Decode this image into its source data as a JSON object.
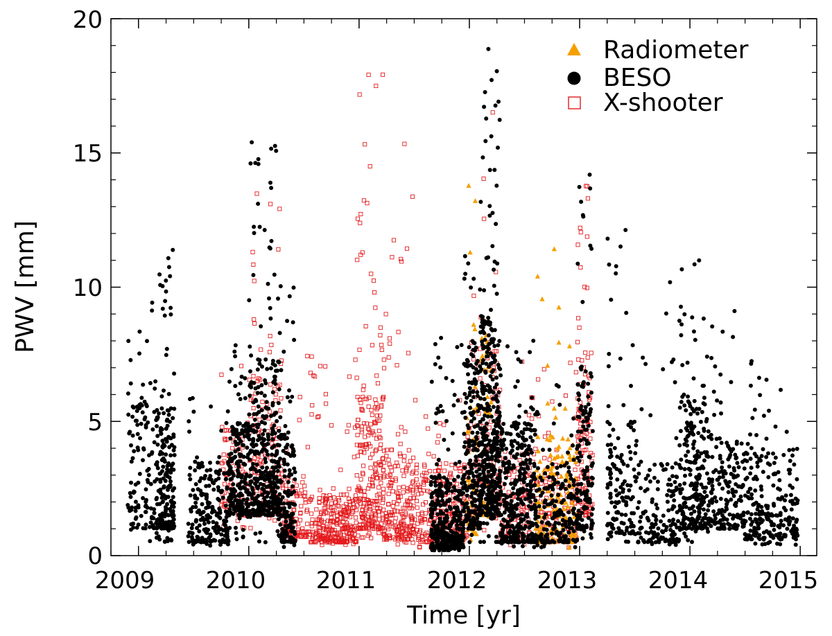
{
  "chart_data": {
    "type": "scatter",
    "title": "",
    "xlabel": "Time [yr]",
    "ylabel": "PWV [mm]",
    "xlim": [
      2008.75,
      2015.15
    ],
    "ylim": [
      0,
      20
    ],
    "x_ticks": [
      "2009",
      "2010",
      "2011",
      "2012",
      "2013",
      "2014",
      "2015"
    ],
    "y_ticks": [
      "0",
      "5",
      "10",
      "15",
      "20"
    ],
    "legend_position": "top-right",
    "series": [
      {
        "name": "Radiometer",
        "marker": "filled-triangle",
        "color": "#f5a000",
        "clusters": [
          {
            "t": [
              2011.97,
              2012.07
            ],
            "core": [
              0.8,
              6.5
            ],
            "tail": [
              0.5,
              14.2
            ],
            "n": 55,
            "skew": 2.2
          },
          {
            "t": [
              2012.1,
              2012.22
            ],
            "core": [
              1.5,
              8.5
            ],
            "tail": [
              1.0,
              13.8
            ],
            "n": 40,
            "skew": 1.8
          },
          {
            "t": [
              2012.6,
              2012.98
            ],
            "core": [
              0.5,
              4.5
            ],
            "tail": [
              0.3,
              12.2
            ],
            "n": 160,
            "skew": 1.7
          }
        ]
      },
      {
        "name": "BESO",
        "marker": "filled-circle",
        "color": "#000000",
        "clusters": [
          {
            "t": [
              2008.9,
              2009.16
            ],
            "core": [
              1.0,
              6.5
            ],
            "tail": [
              0.5,
              9.5
            ],
            "n": 120,
            "skew": 1.5
          },
          {
            "t": [
              2009.16,
              2009.33
            ],
            "core": [
              1.0,
              5.5
            ],
            "tail": [
              0.5,
              11.7
            ],
            "n": 220,
            "skew": 1.6
          },
          {
            "t": [
              2009.45,
              2009.82
            ],
            "core": [
              0.5,
              3.5
            ],
            "tail": [
              0.3,
              6.0
            ],
            "n": 220,
            "skew": 1.6
          },
          {
            "t": [
              2009.82,
              2010.0
            ],
            "core": [
              1.5,
              5.0
            ],
            "tail": [
              0.5,
              8.0
            ],
            "n": 200,
            "skew": 1.5
          },
          {
            "t": [
              2010.0,
              2010.28
            ],
            "core": [
              1.5,
              7.5
            ],
            "tail": [
              0.5,
              15.6
            ],
            "n": 380,
            "skew": 1.7
          },
          {
            "t": [
              2010.28,
              2010.42
            ],
            "core": [
              0.5,
              4.5
            ],
            "tail": [
              0.3,
              10.4
            ],
            "n": 160,
            "skew": 1.8
          },
          {
            "t": [
              2011.65,
              2011.95
            ],
            "core": [
              0.3,
              3.0
            ],
            "tail": [
              0.2,
              8.2
            ],
            "n": 380,
            "skew": 2.0
          },
          {
            "t": [
              2011.95,
              2012.1
            ],
            "core": [
              1.0,
              8.0
            ],
            "tail": [
              0.5,
              12.0
            ],
            "n": 220,
            "skew": 1.6
          },
          {
            "t": [
              2012.1,
              2012.28
            ],
            "core": [
              1.5,
              9.0
            ],
            "tail": [
              0.5,
              18.9
            ],
            "n": 420,
            "skew": 1.6
          },
          {
            "t": [
              2012.28,
              2012.6
            ],
            "core": [
              0.5,
              5.0
            ],
            "tail": [
              0.3,
              8.7
            ],
            "n": 360,
            "skew": 1.6
          },
          {
            "t": [
              2012.6,
              2012.98
            ],
            "core": [
              0.5,
              3.5
            ],
            "tail": [
              0.3,
              7.3
            ],
            "n": 200,
            "skew": 1.9
          },
          {
            "t": [
              2012.98,
              2013.12
            ],
            "core": [
              1.0,
              7.0
            ],
            "tail": [
              0.5,
              14.4
            ],
            "n": 150,
            "skew": 1.6
          },
          {
            "t": [
              2013.25,
              2013.52
            ],
            "core": [
              0.8,
              5.0
            ],
            "tail": [
              0.5,
              12.7
            ],
            "n": 150,
            "skew": 1.8
          },
          {
            "t": [
              2013.52,
              2013.9
            ],
            "core": [
              0.5,
              3.5
            ],
            "tail": [
              0.4,
              10.3
            ],
            "n": 150,
            "skew": 1.9
          },
          {
            "t": [
              2013.9,
              2014.15
            ],
            "core": [
              1.0,
              6.0
            ],
            "tail": [
              0.5,
              12.2
            ],
            "n": 240,
            "skew": 1.7
          },
          {
            "t": [
              2014.15,
              2014.5
            ],
            "core": [
              1.0,
              4.5
            ],
            "tail": [
              0.5,
              9.4
            ],
            "n": 200,
            "skew": 1.8
          },
          {
            "t": [
              2014.5,
              2014.98
            ],
            "core": [
              0.6,
              4.0
            ],
            "tail": [
              0.4,
              7.6
            ],
            "n": 240,
            "skew": 1.7
          }
        ]
      },
      {
        "name": "X-shooter",
        "marker": "open-square",
        "color": "#e41a1c",
        "clusters": [
          {
            "t": [
              2009.75,
              2010.0
            ],
            "core": [
              1.5,
              5.0
            ],
            "tail": [
              1.0,
              7.5
            ],
            "n": 90,
            "skew": 1.6
          },
          {
            "t": [
              2010.0,
              2010.3
            ],
            "core": [
              1.5,
              7.0
            ],
            "tail": [
              1.0,
              13.7
            ],
            "n": 150,
            "skew": 1.7
          },
          {
            "t": [
              2010.3,
              2010.55
            ],
            "core": [
              0.7,
              3.0
            ],
            "tail": [
              0.5,
              7.8
            ],
            "n": 110,
            "skew": 1.8
          },
          {
            "t": [
              2010.55,
              2010.98
            ],
            "core": [
              0.5,
              2.3
            ],
            "tail": [
              0.4,
              7.5
            ],
            "n": 300,
            "skew": 2.1
          },
          {
            "t": [
              2010.98,
              2011.22
            ],
            "core": [
              1.0,
              6.0
            ],
            "tail": [
              0.6,
              18.0
            ],
            "n": 260,
            "skew": 1.7
          },
          {
            "t": [
              2011.22,
              2011.5
            ],
            "core": [
              0.6,
              4.0
            ],
            "tail": [
              0.4,
              16.0
            ],
            "n": 220,
            "skew": 1.9
          },
          {
            "t": [
              2011.5,
              2011.98
            ],
            "core": [
              0.5,
              3.5
            ],
            "tail": [
              0.3,
              6.0
            ],
            "n": 260,
            "skew": 1.8
          },
          {
            "t": [
              2011.98,
              2012.28
            ],
            "core": [
              1.5,
              8.0
            ],
            "tail": [
              0.8,
              18.1
            ],
            "n": 130,
            "skew": 1.6
          },
          {
            "t": [
              2012.28,
              2012.6
            ],
            "core": [
              0.6,
              4.0
            ],
            "tail": [
              0.4,
              7.5
            ],
            "n": 110,
            "skew": 1.8
          },
          {
            "t": [
              2012.6,
              2012.98
            ],
            "core": [
              0.5,
              3.5
            ],
            "tail": [
              0.3,
              7.3
            ],
            "n": 140,
            "skew": 1.8
          },
          {
            "t": [
              2012.98,
              2013.12
            ],
            "core": [
              1.5,
              8.0
            ],
            "tail": [
              1.0,
              14.5
            ],
            "n": 120,
            "skew": 1.6
          }
        ]
      }
    ]
  }
}
